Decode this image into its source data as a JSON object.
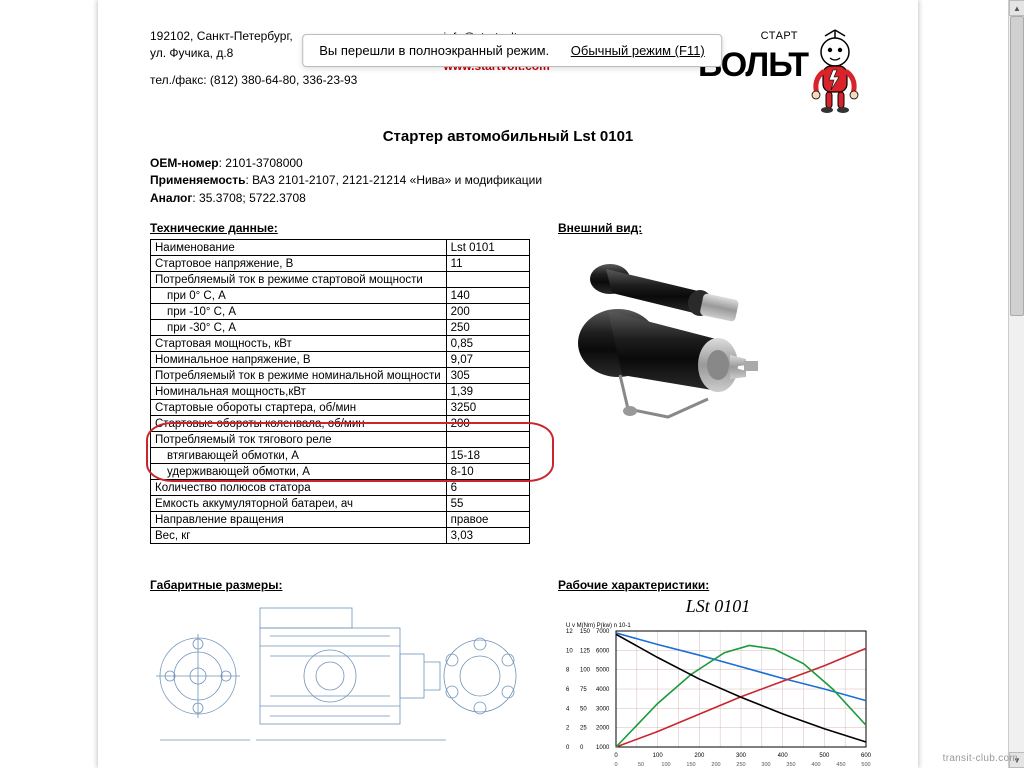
{
  "overlay": {
    "msg": "Вы перешли в полноэкранный режим.",
    "link": "Обычный режим (F11)"
  },
  "header": {
    "addr1": "192102, Санкт-Петербург,",
    "addr2": "ул. Фучика, д.8",
    "phone_label": "тел./факс:",
    "phone": "(812) 380-64-80, 336-23-93",
    "email": "info@startvolt.com",
    "url": "www.startvolt.com",
    "brand_small": "СТАРТ",
    "brand_big": "ВОЛЬТ"
  },
  "title": "Стартер автомобильный Lst 0101",
  "meta": {
    "oem_label": "ОЕМ-номер",
    "oem": ": 2101-3708000",
    "app_label": "Применяемость",
    "app": ": ВАЗ 2101-2107, 2121-21214 «Нива» и модификации",
    "analog_label": "Аналог",
    "analog": ": 35.3708; 5722.3708"
  },
  "sections": {
    "spec": "Технические данные:",
    "view": "Внешний вид:",
    "dims": "Габаритные размеры:",
    "chars": "Рабочие характеристики:"
  },
  "spec_rows": [
    {
      "k": "Наименование",
      "v": "Lst 0101"
    },
    {
      "k": "Стартовое напряжение, В",
      "v": "11"
    },
    {
      "k": "Потребляемый ток в режиме стартовой мощности",
      "v": ""
    },
    {
      "k": "при 0° С, А",
      "v": "140",
      "indent": true
    },
    {
      "k": "при -10° С, А",
      "v": "200",
      "indent": true
    },
    {
      "k": "при -30° С, А",
      "v": "250",
      "indent": true
    },
    {
      "k": "Стартовая мощность, кВт",
      "v": "0,85"
    },
    {
      "k": "Номинальное напряжение, В",
      "v": "9,07"
    },
    {
      "k": "Потребляемый ток в режиме номинальной мощности",
      "v": "305"
    },
    {
      "k": "Номинальная мощность,кВт",
      "v": "1,39"
    },
    {
      "k": "Стартовые обороты стартера, об/мин",
      "v": "3250"
    },
    {
      "k": "Стартовые обороты коленвала, об/мин",
      "v": "200"
    },
    {
      "k": "Потребляемый ток тягового реле",
      "v": ""
    },
    {
      "k": "втягивающей обмотки, А",
      "v": "15-18",
      "indent": true
    },
    {
      "k": "удерживающей обмотки, А",
      "v": "8-10",
      "indent": true
    },
    {
      "k": "Количество полюсов статора",
      "v": "6"
    },
    {
      "k": "Емкость аккумуляторной батареи, ач",
      "v": "55"
    },
    {
      "k": "Направление вращения",
      "v": "правое"
    },
    {
      "k": "Вес, кг",
      "v": "3,03"
    }
  ],
  "chart": {
    "title": "LSt 0101",
    "header": "U v  M(Nm) P(kw)  n 10-1",
    "y_left": [
      "12",
      "10",
      "8",
      "6",
      "4",
      "2",
      "0"
    ],
    "y_right": [
      "150",
      "125",
      "100",
      "75",
      "50",
      "25",
      "0"
    ],
    "y_rpm": [
      "7000",
      "6000",
      "5000",
      "4000",
      "3000",
      "2000",
      "1000",
      "0"
    ],
    "x": [
      "0",
      "50",
      "100",
      "150",
      "200",
      "250",
      "300",
      "350",
      "400",
      "450",
      "500"
    ],
    "x1": [
      "0",
      "100",
      "200",
      "300",
      "400",
      "500",
      "600"
    ],
    "colors": {
      "U": "#1a6fd6",
      "M": "#c8252d",
      "P": "#1a9b3a",
      "n": "#000000",
      "grid": "#d9b8b8",
      "axis": "#000000"
    },
    "series": {
      "U": [
        [
          0,
          11.8
        ],
        [
          100,
          10.6
        ],
        [
          200,
          9.5
        ],
        [
          300,
          8.3
        ],
        [
          400,
          7.1
        ],
        [
          500,
          6.0
        ],
        [
          600,
          4.8
        ]
      ],
      "M": [
        [
          0,
          0
        ],
        [
          100,
          0.4
        ],
        [
          200,
          0.85
        ],
        [
          300,
          1.3
        ],
        [
          400,
          1.7
        ],
        [
          500,
          2.1
        ],
        [
          600,
          2.55
        ]
      ],
      "P": [
        [
          0,
          0
        ],
        [
          100,
          0.6
        ],
        [
          180,
          1.0
        ],
        [
          260,
          1.3
        ],
        [
          320,
          1.4
        ],
        [
          380,
          1.35
        ],
        [
          450,
          1.15
        ],
        [
          520,
          0.8
        ],
        [
          600,
          0.3
        ]
      ],
      "n": [
        [
          0,
          6800
        ],
        [
          100,
          5400
        ],
        [
          200,
          4100
        ],
        [
          300,
          3000
        ],
        [
          400,
          2000
        ],
        [
          500,
          1100
        ],
        [
          600,
          300
        ]
      ]
    }
  },
  "mascot_colors": {
    "suit": "#d8232a",
    "skin": "#f8d9c0",
    "antenna": "#000"
  },
  "blueprint_color": "#6f93b8",
  "watermark": "transit-club.com"
}
